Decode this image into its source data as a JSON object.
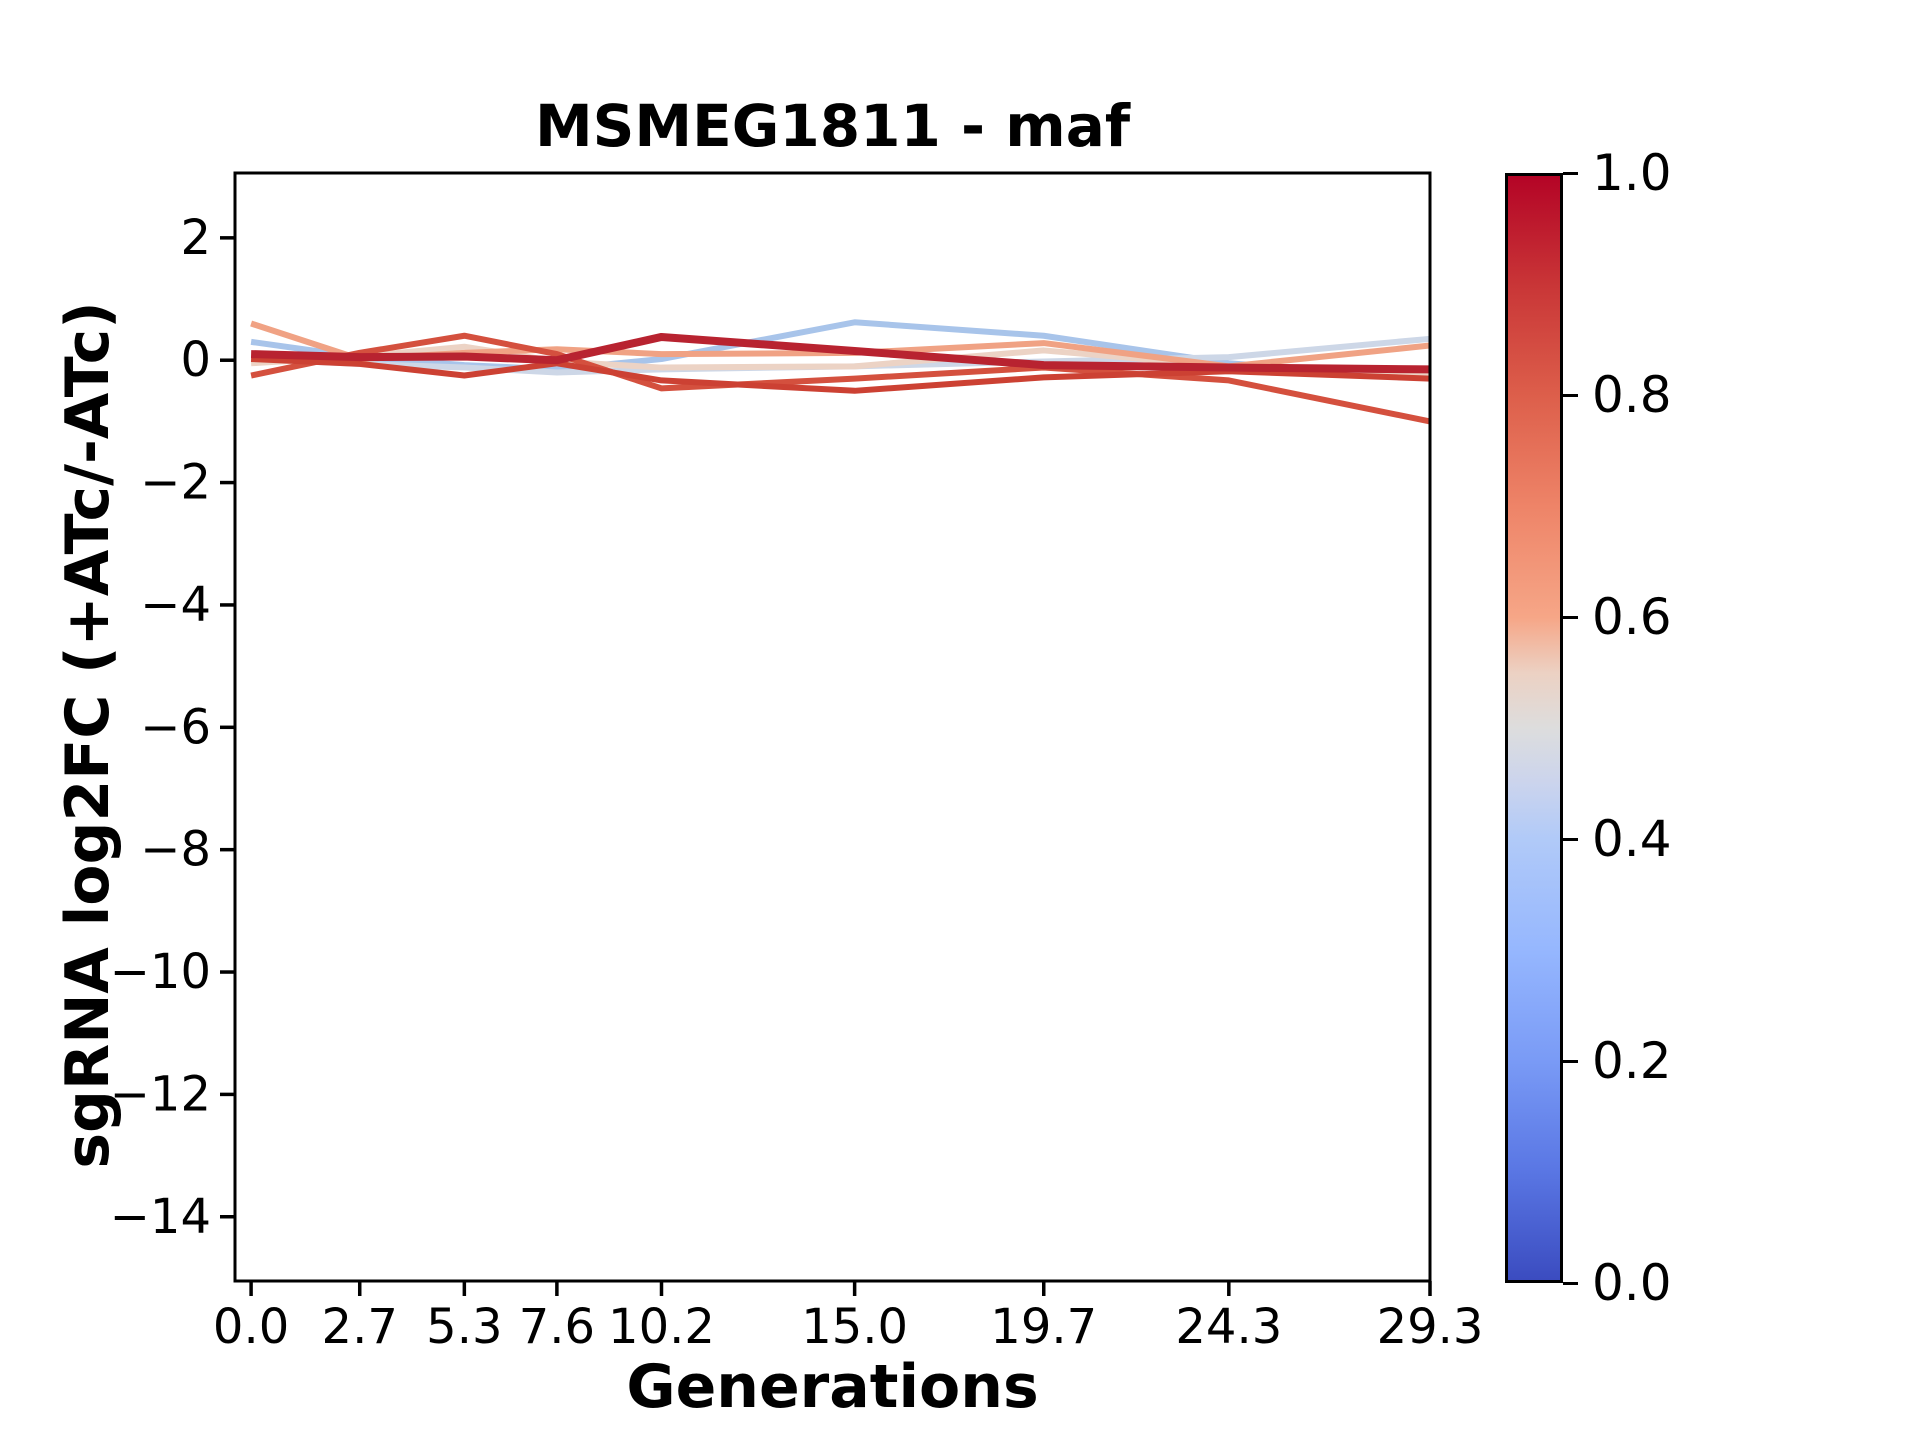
{
  "title": "MSMEG1811 - maf",
  "chart_data": {
    "type": "line",
    "title": "MSMEG1811 - maf",
    "xlabel": "Generations",
    "ylabel": "sgRNA log2FC (+ATc/-ATc)",
    "x": [
      0.0,
      2.7,
      5.3,
      7.6,
      10.2,
      15.0,
      19.7,
      24.3,
      29.3
    ],
    "x_tick_labels": [
      "0.0",
      "2.7",
      "5.3",
      "7.6",
      "10.2",
      "15.0",
      "19.7",
      "24.3",
      "29.3"
    ],
    "y_ticks": [
      2,
      0,
      -2,
      -4,
      -6,
      -8,
      -10,
      -12,
      -14
    ],
    "y_tick_labels": [
      "2",
      "0",
      "−2",
      "−4",
      "−6",
      "−8",
      "−10",
      "−12",
      "−14"
    ],
    "xlim": [
      -0.4,
      29.3
    ],
    "ylim": [
      -15.05,
      3.06
    ],
    "grid": false,
    "legend": "colorbar-right",
    "series": [
      {
        "colormap_value": 0.4,
        "color": "#a8c4ea",
        "linewidth": 6,
        "values": [
          0.3,
          0.05,
          -0.08,
          -0.15,
          0.02,
          0.62,
          0.4,
          -0.05,
          -0.3
        ]
      },
      {
        "colormap_value": 0.47,
        "color": "#cdd7e7",
        "linewidth": 6,
        "values": [
          0.02,
          -0.06,
          -0.12,
          -0.2,
          -0.15,
          -0.1,
          -0.02,
          0.05,
          0.35
        ]
      },
      {
        "colormap_value": 0.56,
        "color": "#ecd3c5",
        "linewidth": 6,
        "values": [
          -0.05,
          0.06,
          0.22,
          -0.02,
          -0.12,
          -0.1,
          0.16,
          -0.1,
          -0.22
        ]
      },
      {
        "colormap_value": 0.68,
        "color": "#f0a284",
        "linewidth": 6,
        "values": [
          0.6,
          0.02,
          0.12,
          0.18,
          0.1,
          0.12,
          0.28,
          -0.1,
          0.24
        ]
      },
      {
        "colormap_value": 0.86,
        "color": "#d4503e",
        "linewidth": 6,
        "values": [
          -0.25,
          0.12,
          0.4,
          0.1,
          -0.46,
          -0.3,
          -0.12,
          -0.33,
          -1.0
        ]
      },
      {
        "colormap_value": 0.9,
        "color": "#cc4133",
        "linewidth": 6,
        "values": [
          0.02,
          -0.06,
          -0.25,
          -0.05,
          -0.33,
          -0.5,
          -0.28,
          -0.18,
          -0.3
        ]
      },
      {
        "colormap_value": 1.0,
        "color": "#b82330",
        "linewidth": 8,
        "values": [
          0.1,
          0.05,
          0.06,
          0.0,
          0.38,
          0.15,
          -0.08,
          -0.12,
          -0.15
        ]
      }
    ],
    "colorbar": {
      "tick_labels": [
        "1.0",
        "0.8",
        "0.6",
        "0.4",
        "0.2",
        "0.0"
      ],
      "tick_values": [
        1.0,
        0.8,
        0.6,
        0.4,
        0.2,
        0.0
      ],
      "cmap": "coolwarm",
      "gradient_stops": [
        "#b40426 0%",
        "#c93637 10%",
        "#dd5f4b 20%",
        "#ee8468 30%",
        "#f6a687 40%",
        "#ecd1c3 45%",
        "#dddddd 50%",
        "#cbd4ed 55%",
        "#b1caf8 60%",
        "#96b7fe 70%",
        "#7a9bf6 80%",
        "#5a77e4 90%",
        "#3b4cc0 100%"
      ]
    }
  },
  "axis_color": "#000000",
  "background_color": "#ffffff"
}
